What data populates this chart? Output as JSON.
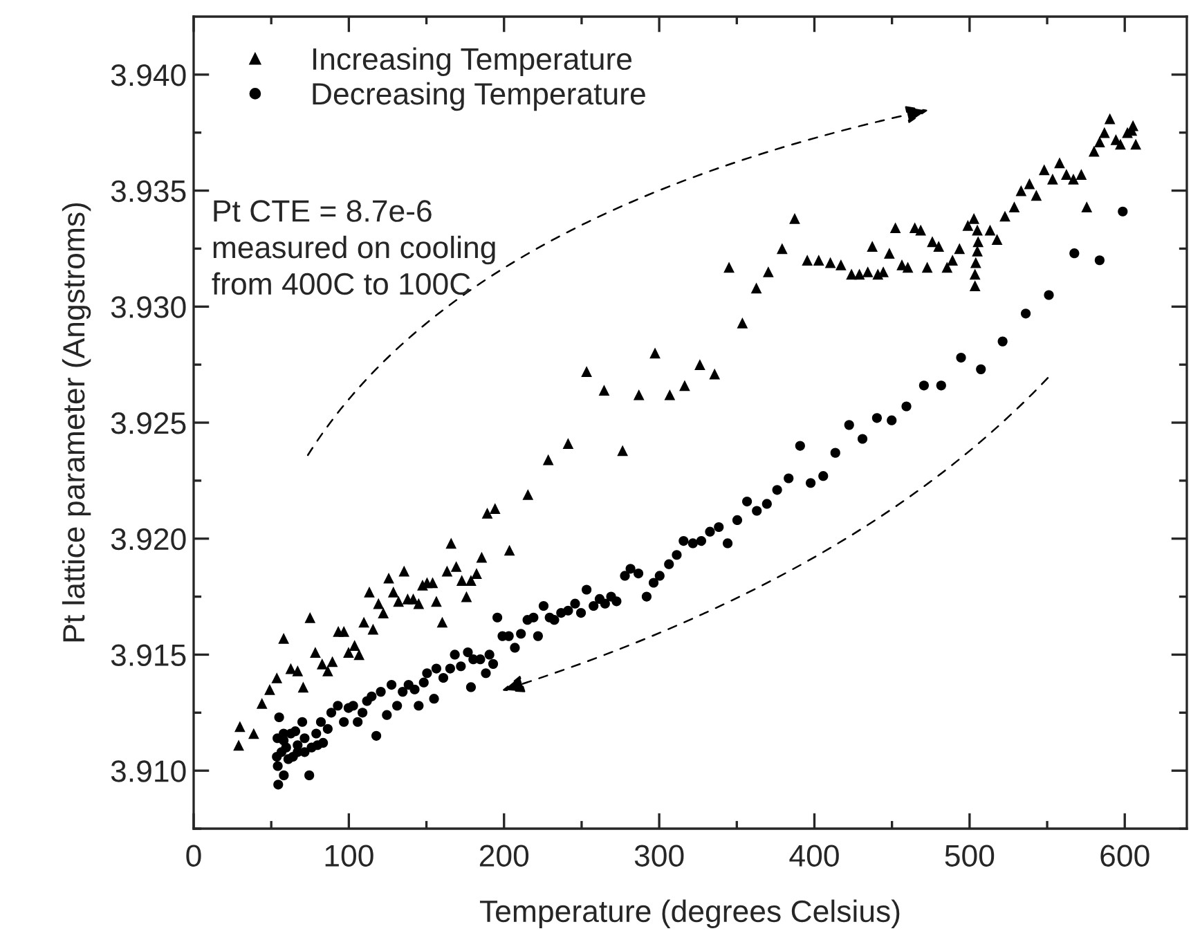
{
  "chart_data": {
    "type": "scatter",
    "xlabel": "Temperature (degrees Celsius)",
    "ylabel": "Pt lattice parameter (Angstroms)",
    "annotations": [
      "Pt CTE = 8.7e-6\nmeasured on cooling\nfrom 400C to 100C"
    ],
    "xlim": [
      0,
      640
    ],
    "xticks": [
      0,
      100,
      200,
      300,
      400,
      500,
      600
    ],
    "ylim": [
      3.9075,
      3.9425
    ],
    "yticks": [
      {
        "value": 3.91,
        "label": "3.910"
      },
      {
        "value": 3.915,
        "label": "3.915"
      },
      {
        "value": 3.92,
        "label": "3.920"
      },
      {
        "value": 3.925,
        "label": "3.925"
      },
      {
        "value": 3.93,
        "label": "3.930"
      },
      {
        "value": 3.935,
        "label": "3.935"
      },
      {
        "value": 3.94,
        "label": "3.940"
      }
    ],
    "grid": false,
    "legend": "top left",
    "series": [
      {
        "name": "Increasing Temperature",
        "color": "#000000",
        "marker": "triangle",
        "x": [
          29.8,
          29,
          38.7,
          44,
          49,
          53.6,
          58,
          62.6,
          67,
          70.6,
          75,
          78.4,
          82.8,
          86.4,
          89.4,
          93.2,
          96.8,
          99.8,
          103.7,
          106.6,
          109.7,
          113.2,
          115.6,
          119.1,
          122.2,
          125.7,
          128.7,
          132,
          135.6,
          137.9,
          141.5,
          145,
          147.5,
          150.4,
          154,
          156.4,
          160.2,
          163.3,
          165.9,
          169.2,
          172.8,
          175.8,
          178.7,
          182.3,
          185.6,
          189.2,
          194.2,
          203.5,
          215.4,
          228.5,
          241.3,
          276.4,
          253.2,
          264.5,
          286.9,
          297.3,
          306.8,
          316.4,
          326.2,
          335.7,
          345,
          353.6,
          362.6,
          370.3,
          379.2,
          387.3,
          395.4,
          402.8,
          410.3,
          417.1,
          423.9,
          429,
          434.4,
          437.3,
          440.9,
          444.4,
          448.3,
          452.2,
          456.4,
          460.2,
          464.7,
          468.5,
          472.7,
          476,
          480.1,
          485.5,
          489,
          493.5,
          498.9,
          502.8,
          503.5,
          503.5,
          504,
          505,
          505.5,
          505,
          513.2,
          517.7,
          522.8,
          528.8,
          533.2,
          538.6,
          543,
          548.1,
          553.5,
          558,
          562.4,
          566.9,
          572,
          575.5,
          580.2,
          583.8,
          586.9,
          590.4,
          594.3,
          597.2,
          601.7,
          605.3,
          607.1,
          604.5
        ],
        "values": [
          3.9119,
          3.9111,
          3.9116,
          3.9129,
          3.9135,
          3.914,
          3.9157,
          3.9144,
          3.9143,
          3.9136,
          3.9166,
          3.9151,
          3.9146,
          3.9143,
          3.9147,
          3.916,
          3.916,
          3.9151,
          3.9154,
          3.915,
          3.9164,
          3.9177,
          3.9161,
          3.9172,
          3.9168,
          3.9183,
          3.9177,
          3.9173,
          3.9186,
          3.9174,
          3.9174,
          3.9172,
          3.918,
          3.9181,
          3.9181,
          3.9173,
          3.9164,
          3.9186,
          3.9198,
          3.9188,
          3.9182,
          3.9175,
          3.9182,
          3.9185,
          3.9192,
          3.9211,
          3.9213,
          3.9195,
          3.9219,
          3.9234,
          3.9241,
          3.9238,
          3.9272,
          3.9264,
          3.9262,
          3.928,
          3.9262,
          3.9266,
          3.9275,
          3.9271,
          3.9317,
          3.9293,
          3.9308,
          3.9315,
          3.9325,
          3.9338,
          3.932,
          3.932,
          3.9319,
          3.9318,
          3.9314,
          3.9314,
          3.9315,
          3.9326,
          3.9314,
          3.9315,
          3.9323,
          3.9334,
          3.9318,
          3.9317,
          3.9334,
          3.9333,
          3.9317,
          3.9328,
          3.9326,
          3.9317,
          3.932,
          3.9325,
          3.9335,
          3.9338,
          3.9314,
          3.9309,
          3.9319,
          3.9324,
          3.9328,
          3.9333,
          3.9333,
          3.9329,
          3.9339,
          3.9343,
          3.935,
          3.9353,
          3.9348,
          3.9359,
          3.9355,
          3.9362,
          3.9357,
          3.9355,
          3.9357,
          3.9343,
          3.9367,
          3.9371,
          3.9375,
          3.9381,
          3.9372,
          3.937,
          3.9375,
          3.9378,
          3.937,
          3.9376
        ]
      },
      {
        "name": "Decreasing Temperature",
        "color": "#000000",
        "marker": "circle",
        "x": [
          598.7,
          583.8,
          567.5,
          551.1,
          536.2,
          521.3,
          507.3,
          494.5,
          481.7,
          470.6,
          459.3,
          449.8,
          440.3,
          431,
          422.4,
          413.5,
          405.7,
          397.6,
          390.8,
          383.4,
          376,
          369.4,
          362.9,
          356.6,
          350.3,
          344.1,
          338.4,
          332.7,
          327.1,
          321.7,
          315.7,
          311.3,
          306.3,
          300.3,
          296.4,
          291.9,
          286.6,
          281.5,
          277.9,
          272.5,
          269,
          265.1,
          261.6,
          257.7,
          253.2,
          249.6,
          245.8,
          241.3,
          236.8,
          232.4,
          229.4,
          225.5,
          221.9,
          219,
          215.1,
          210.9,
          207,
          203.1,
          199,
          195.7,
          193,
          190.6,
          188.3,
          184.7,
          180.2,
          176.7,
          178.7,
          172.2,
          168.3,
          165.3,
          160.9,
          156.4,
          154.9,
          150.4,
          148.3,
          145,
          142.4,
          138.5,
          134.7,
          131.1,
          127.5,
          124.5,
          120.6,
          117.7,
          114.7,
          111.7,
          108.8,
          105.7,
          102.8,
          99.8,
          96.8,
          92.9,
          88.7,
          86.4,
          82,
          79,
          74.5,
          71.5,
          70,
          67,
          62.6,
          59.6,
          58.1,
          55.1,
          54.5,
          54,
          53.6,
          54.2,
          56.6,
          58,
          61,
          64,
          67,
          71.5,
          76,
          79.8,
          83.4,
          58,
          65.5
        ],
        "values": [
          3.9341,
          3.932,
          3.9323,
          3.9305,
          3.9297,
          3.9285,
          3.9273,
          3.9278,
          3.9266,
          3.9266,
          3.9257,
          3.9251,
          3.9252,
          3.9243,
          3.9249,
          3.9237,
          3.9227,
          3.9224,
          3.924,
          3.9226,
          3.9221,
          3.9215,
          3.9212,
          3.9216,
          3.9208,
          3.9198,
          3.9205,
          3.9203,
          3.9199,
          3.9198,
          3.9199,
          3.9193,
          3.9189,
          3.9184,
          3.9181,
          3.9175,
          3.9185,
          3.9187,
          3.9184,
          3.9173,
          3.9175,
          3.9172,
          3.9174,
          3.9171,
          3.9178,
          3.9168,
          3.9172,
          3.9169,
          3.9168,
          3.9165,
          3.9166,
          3.9171,
          3.9158,
          3.9166,
          3.9165,
          3.9159,
          3.9153,
          3.9158,
          3.9158,
          3.9166,
          3.9146,
          3.915,
          3.9142,
          3.9148,
          3.9148,
          3.9151,
          3.9136,
          3.9145,
          3.915,
          3.9144,
          3.914,
          3.9144,
          3.9131,
          3.9142,
          3.9138,
          3.9128,
          3.9135,
          3.9137,
          3.9134,
          3.9128,
          3.9137,
          3.9124,
          3.9134,
          3.9115,
          3.9132,
          3.913,
          3.9125,
          3.9121,
          3.9128,
          3.9127,
          3.9121,
          3.9128,
          3.9125,
          3.9118,
          3.9121,
          3.9116,
          3.9098,
          3.9114,
          3.9121,
          3.9111,
          3.9116,
          3.911,
          3.9098,
          3.9123,
          3.9094,
          3.9114,
          3.9106,
          3.9102,
          3.9108,
          3.9116,
          3.9105,
          3.9106,
          3.9108,
          3.9108,
          3.911,
          3.9111,
          3.9112,
          3.9113,
          3.9117
        ]
      }
    ]
  }
}
